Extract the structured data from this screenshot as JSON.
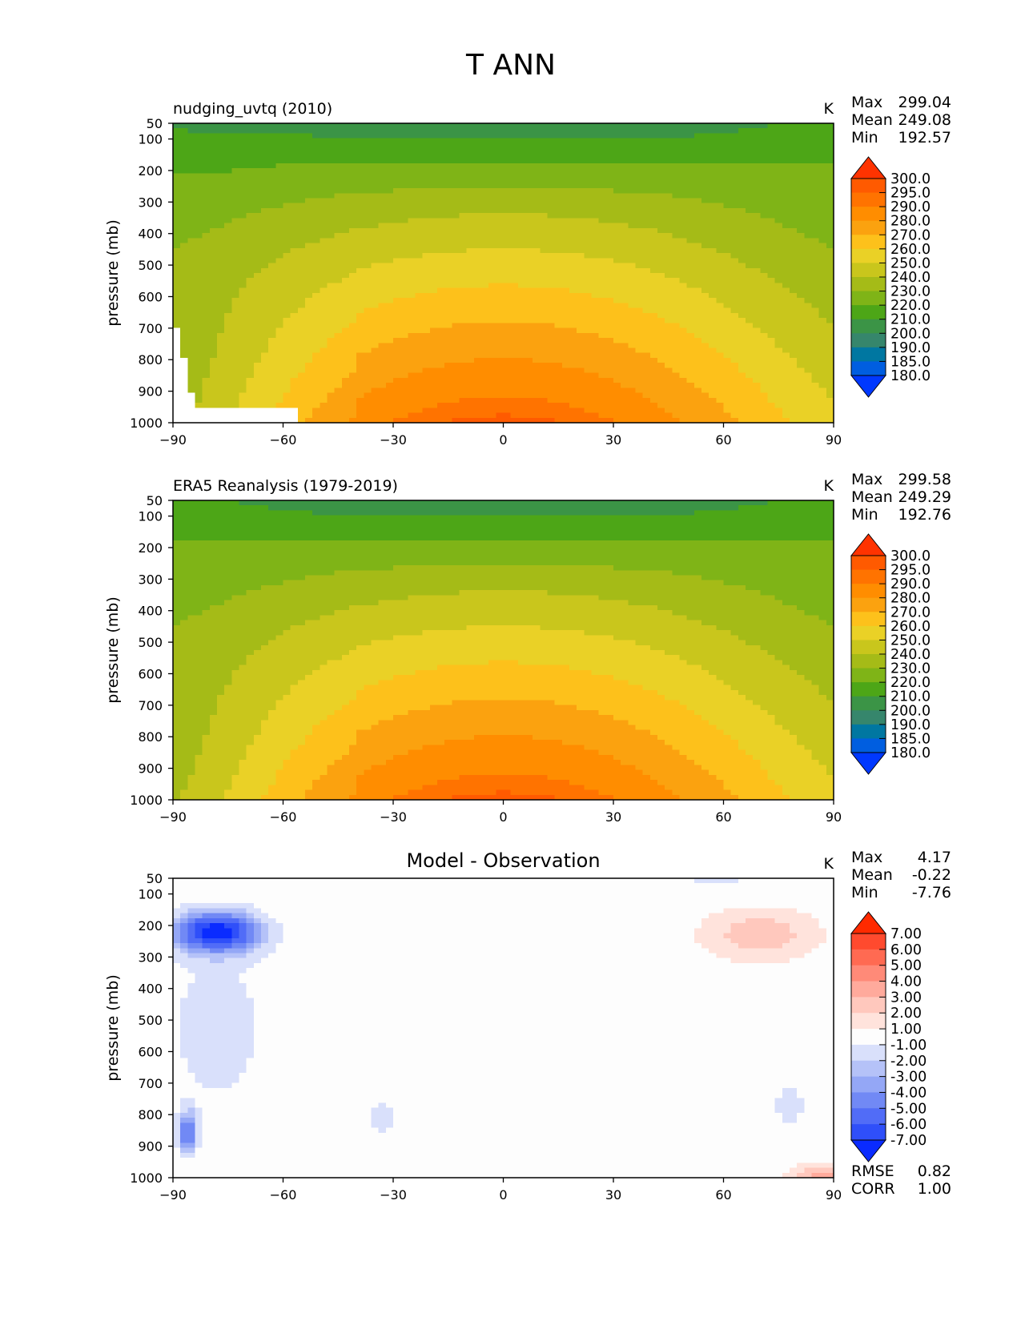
{
  "figure": {
    "title": "T ANN"
  },
  "chart_data": [
    {
      "type": "contour",
      "id": "model",
      "title": "nudging_uvtq (2010)",
      "units": "K",
      "xlabel": "",
      "ylabel": "pressure (mb)",
      "xlim": [
        -90,
        90
      ],
      "ylim": [
        1000,
        50
      ],
      "xticks": [
        "−90",
        "−60",
        "−30",
        "0",
        "30",
        "60",
        "90"
      ],
      "yticks": [
        "50",
        "100",
        "200",
        "300",
        "400",
        "500",
        "600",
        "700",
        "800",
        "900",
        "1000"
      ],
      "stats": [
        {
          "label": "Max",
          "value": "299.04"
        },
        {
          "label": "Mean",
          "value": "249.08"
        },
        {
          "label": "Min",
          "value": "192.57"
        }
      ],
      "colorbar": {
        "ticks": [
          "300.0",
          "295.0",
          "290.0",
          "280.0",
          "270.0",
          "260.0",
          "250.0",
          "240.0",
          "230.0",
          "220.0",
          "210.0",
          "200.0",
          "190.0",
          "185.0",
          "180.0"
        ],
        "colors": [
          "#ff3300",
          "#ff5a00",
          "#ff7300",
          "#ff8d00",
          "#fba20f",
          "#fdc11b",
          "#ead126",
          "#c9c61c",
          "#a5bb17",
          "#7fb417",
          "#4da617",
          "#3b9446",
          "#36866c",
          "#0077a1",
          "#005ee0",
          "#0038ff"
        ]
      },
      "extra_stats": []
    },
    {
      "type": "contour",
      "id": "obs",
      "title": "ERA5 Reanalysis (1979-2019)",
      "units": "K",
      "xlabel": "",
      "ylabel": "pressure (mb)",
      "xlim": [
        -90,
        90
      ],
      "ylim": [
        1000,
        50
      ],
      "xticks": [
        "−90",
        "−60",
        "−30",
        "0",
        "30",
        "60",
        "90"
      ],
      "yticks": [
        "50",
        "100",
        "200",
        "300",
        "400",
        "500",
        "600",
        "700",
        "800",
        "900",
        "1000"
      ],
      "stats": [
        {
          "label": "Max",
          "value": "299.58"
        },
        {
          "label": "Mean",
          "value": "249.29"
        },
        {
          "label": "Min",
          "value": "192.76"
        }
      ],
      "colorbar": {
        "ticks": [
          "300.0",
          "295.0",
          "290.0",
          "280.0",
          "270.0",
          "260.0",
          "250.0",
          "240.0",
          "230.0",
          "220.0",
          "210.0",
          "200.0",
          "190.0",
          "185.0",
          "180.0"
        ],
        "colors": [
          "#ff3300",
          "#ff5a00",
          "#ff7300",
          "#ff8d00",
          "#fba20f",
          "#fdc11b",
          "#ead126",
          "#c9c61c",
          "#a5bb17",
          "#7fb417",
          "#4da617",
          "#3b9446",
          "#36866c",
          "#0077a1",
          "#005ee0",
          "#0038ff"
        ]
      },
      "extra_stats": []
    },
    {
      "type": "contour",
      "id": "diff",
      "title": "Model - Observation",
      "units": "K",
      "xlabel": "",
      "ylabel": "pressure (mb)",
      "xlim": [
        -90,
        90
      ],
      "ylim": [
        1000,
        50
      ],
      "xticks": [
        "−90",
        "−60",
        "−30",
        "0",
        "30",
        "60",
        "90"
      ],
      "yticks": [
        "50",
        "100",
        "200",
        "300",
        "400",
        "500",
        "600",
        "700",
        "800",
        "900",
        "1000"
      ],
      "stats": [
        {
          "label": "Max",
          "value": "4.17"
        },
        {
          "label": "Mean",
          "value": "-0.22"
        },
        {
          "label": "Min",
          "value": "-7.76"
        }
      ],
      "colorbar": {
        "ticks": [
          "7.00",
          "6.00",
          "5.00",
          "4.00",
          "3.00",
          "2.00",
          "1.00",
          "-1.00",
          "-2.00",
          "-3.00",
          "-4.00",
          "-5.00",
          "-6.00",
          "-7.00"
        ],
        "colors": [
          "#ff2a00",
          "#ff4a2e",
          "#ff6a52",
          "#ff8a78",
          "#ffaa9c",
          "#ffc8bd",
          "#ffe3dc",
          "#fdfdfd",
          "#d9e0fb",
          "#b5c2f8",
          "#94a7f6",
          "#7189f5",
          "#516cf7",
          "#2f4ff9",
          "#0a2bff"
        ]
      },
      "extra_stats": [
        {
          "label": "RMSE",
          "value": "0.82"
        },
        {
          "label": "CORR",
          "value": "1.00"
        }
      ]
    }
  ]
}
